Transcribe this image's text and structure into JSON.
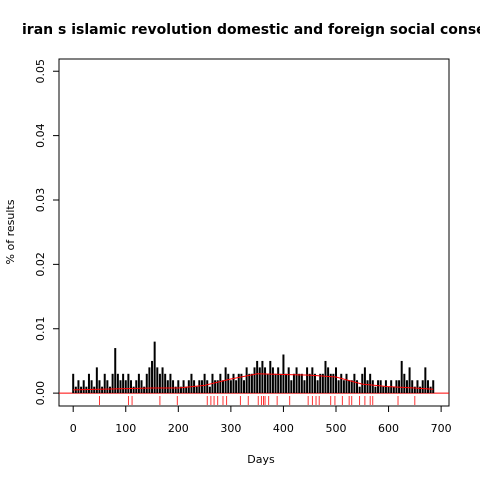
{
  "chart_data": {
    "type": "spike",
    "title": "iran s islamic revolution domestic and foreign social consequence",
    "xlabel": "Days",
    "ylabel": "% of results",
    "xlim": [
      -27,
      715
    ],
    "ylim": [
      -0.002,
      0.0519
    ],
    "xticks": [
      0,
      100,
      200,
      300,
      400,
      500,
      600,
      700
    ],
    "yticks": [
      {
        "value": 0,
        "label": "0.00"
      },
      0.01,
      0.02,
      0.03,
      0.04,
      0.05
    ],
    "hline": 0,
    "series": [
      {
        "color": "#000000",
        "x": [
          0,
          5,
          10,
          15,
          20,
          25,
          30,
          35,
          40,
          45,
          50,
          55,
          60,
          65,
          70,
          75,
          80,
          85,
          90,
          95,
          100,
          105,
          110,
          115,
          120,
          125,
          130,
          135,
          140,
          145,
          150,
          155,
          160,
          165,
          170,
          175,
          180,
          185,
          190,
          195,
          200,
          205,
          210,
          215,
          220,
          225,
          230,
          235,
          240,
          245,
          250,
          255,
          260,
          265,
          270,
          275,
          280,
          285,
          290,
          295,
          300,
          305,
          310,
          315,
          320,
          325,
          330,
          335,
          340,
          345,
          350,
          355,
          360,
          365,
          370,
          375,
          380,
          385,
          390,
          395,
          400,
          405,
          410,
          415,
          420,
          425,
          430,
          435,
          440,
          445,
          450,
          455,
          460,
          465,
          470,
          475,
          480,
          485,
          490,
          495,
          500,
          505,
          510,
          515,
          520,
          525,
          530,
          535,
          540,
          545,
          550,
          555,
          560,
          565,
          570,
          575,
          580,
          585,
          590,
          595,
          600,
          605,
          610,
          615,
          620,
          625,
          630,
          635,
          640,
          645,
          650,
          655,
          660,
          665,
          670,
          675,
          680,
          685
        ],
        "values": [
          0.003,
          0.001,
          0.002,
          0.001,
          0.002,
          0.001,
          0.003,
          0.002,
          0.001,
          0.004,
          0.002,
          0.001,
          0.003,
          0.002,
          0.001,
          0.003,
          0.007,
          0.003,
          0.002,
          0.003,
          0.002,
          0.003,
          0.002,
          0.001,
          0.002,
          0.003,
          0.002,
          0.001,
          0.003,
          0.004,
          0.005,
          0.008,
          0.004,
          0.003,
          0.004,
          0.003,
          0.002,
          0.003,
          0.002,
          0.001,
          0.002,
          0.001,
          0.002,
          0.001,
          0.002,
          0.003,
          0.002,
          0.001,
          0.002,
          0.002,
          0.003,
          0.002,
          0.001,
          0.003,
          0.002,
          0.002,
          0.003,
          0.002,
          0.004,
          0.003,
          0.002,
          0.003,
          0.002,
          0.003,
          0.003,
          0.002,
          0.004,
          0.003,
          0.003,
          0.004,
          0.005,
          0.004,
          0.005,
          0.004,
          0.003,
          0.005,
          0.004,
          0.003,
          0.004,
          0.003,
          0.006,
          0.003,
          0.004,
          0.002,
          0.003,
          0.004,
          0.003,
          0.003,
          0.002,
          0.004,
          0.003,
          0.004,
          0.003,
          0.002,
          0.003,
          0.003,
          0.005,
          0.004,
          0.003,
          0.003,
          0.004,
          0.002,
          0.003,
          0.002,
          0.003,
          0.002,
          0.002,
          0.003,
          0.002,
          0.001,
          0.003,
          0.004,
          0.002,
          0.003,
          0.002,
          0.001,
          0.002,
          0.002,
          0.001,
          0.002,
          0.001,
          0.002,
          0.001,
          0.002,
          0.002,
          0.005,
          0.003,
          0.002,
          0.004,
          0.002,
          0.001,
          0.002,
          0.001,
          0.002,
          0.004,
          0.002,
          0.001,
          0.002
        ]
      },
      {
        "color": "#ff0000",
        "style": "smooth",
        "x": [
          0,
          50,
          100,
          150,
          200,
          250,
          300,
          350,
          400,
          450,
          500,
          550,
          600,
          650,
          685
        ],
        "values": [
          0.0005,
          0.0006,
          0.0007,
          0.0008,
          0.0008,
          0.0012,
          0.0022,
          0.003,
          0.0029,
          0.0028,
          0.0025,
          0.0014,
          0.001,
          0.0008,
          0.0006
        ]
      }
    ],
    "rug_color": "#ff0000",
    "rug": [
      50,
      105,
      112,
      165,
      198,
      255,
      262,
      268,
      275,
      285,
      292,
      318,
      333,
      352,
      358,
      362,
      365,
      372,
      388,
      412,
      447,
      455,
      462,
      468,
      490,
      498,
      512,
      525,
      530,
      545,
      555,
      565,
      570,
      618,
      650
    ]
  }
}
